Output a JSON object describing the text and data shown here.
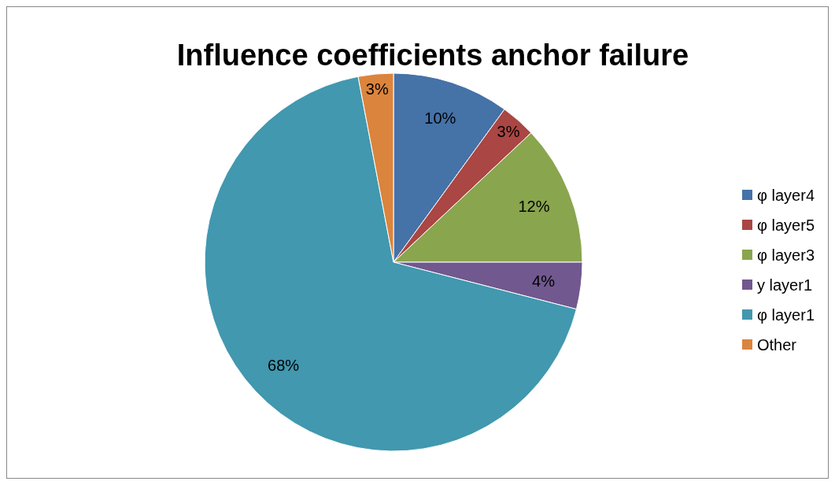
{
  "chart_data": {
    "type": "pie",
    "title": "Influence coefficients anchor failure",
    "categories": [
      "φ layer4",
      "φ layer5",
      "φ layer3",
      "y layer1",
      "φ layer1",
      "Other"
    ],
    "values": [
      10,
      3,
      12,
      4,
      68,
      3
    ],
    "colors": [
      "#4572a7",
      "#aa4643",
      "#89a54e",
      "#71588f",
      "#4198af",
      "#db843d"
    ],
    "value_labels": [
      "10%",
      "3%",
      "12%",
      "4%",
      "68%",
      "3%"
    ],
    "legend": "right"
  }
}
